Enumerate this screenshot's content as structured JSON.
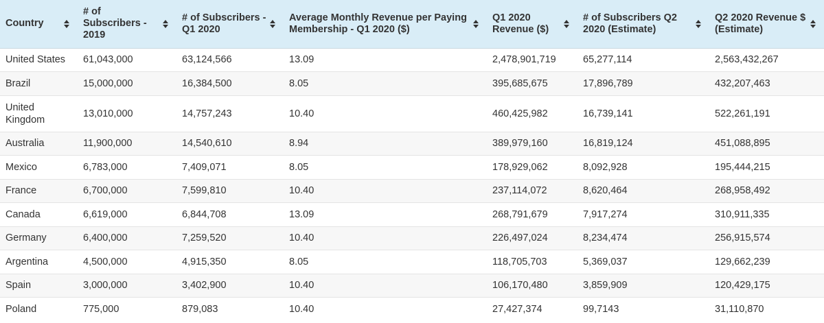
{
  "columns": [
    {
      "label": "Country"
    },
    {
      "label": "# of Subscribers - 2019"
    },
    {
      "label": "# of Subscribers - Q1 2020"
    },
    {
      "label": "Average Monthly Revenue per Paying Membership - Q1 2020 ($)"
    },
    {
      "label": "Q1 2020 Revenue ($)"
    },
    {
      "label": "# of Subscribers Q2 2020 (Estimate)"
    },
    {
      "label": "Q2 2020 Revenue $ (Estimate)"
    }
  ],
  "rows": [
    [
      "United States",
      "61,043,000",
      "63,124,566",
      "13.09",
      "2,478,901,719",
      "65,277,114",
      "2,563,432,267"
    ],
    [
      "Brazil",
      "15,000,000",
      "16,384,500",
      "8.05",
      "395,685,675",
      "17,896,789",
      "432,207,463"
    ],
    [
      "United Kingdom",
      "13,010,000",
      "14,757,243",
      "10.40",
      "460,425,982",
      "16,739,141",
      "522,261,191"
    ],
    [
      "Australia",
      "11,900,000",
      "14,540,610",
      "8.94",
      "389,979,160",
      "16,819,124",
      "451,088,895"
    ],
    [
      "Mexico",
      "6,783,000",
      "7,409,071",
      "8.05",
      "178,929,062",
      "8,092,928",
      "195,444,215"
    ],
    [
      "France",
      "6,700,000",
      "7,599,810",
      "10.40",
      "237,114,072",
      "8,620,464",
      "268,958,492"
    ],
    [
      "Canada",
      "6,619,000",
      "6,844,708",
      "13.09",
      "268,791,679",
      "7,917,274",
      "310,911,335"
    ],
    [
      "Germany",
      "6,400,000",
      "7,259,520",
      "10.40",
      "226,497,024",
      "8,234,474",
      "256,915,574"
    ],
    [
      "Argentina",
      "4,500,000",
      "4,915,350",
      "8.05",
      "118,705,703",
      "5,369,037",
      "129,662,239"
    ],
    [
      "Spain",
      "3,000,000",
      "3,402,900",
      "10.40",
      "106,170,480",
      "3,859,909",
      "120,429,175"
    ],
    [
      "Poland",
      "775,000",
      "879,083",
      "10.40",
      "27,427,374",
      "99,7143",
      "31,110,870"
    ]
  ],
  "colors": {
    "header_bg": "#d9edf7",
    "row_alt_bg": "#f7f7f7",
    "text": "#333333"
  },
  "icons": {
    "sort": "sort-icon"
  }
}
